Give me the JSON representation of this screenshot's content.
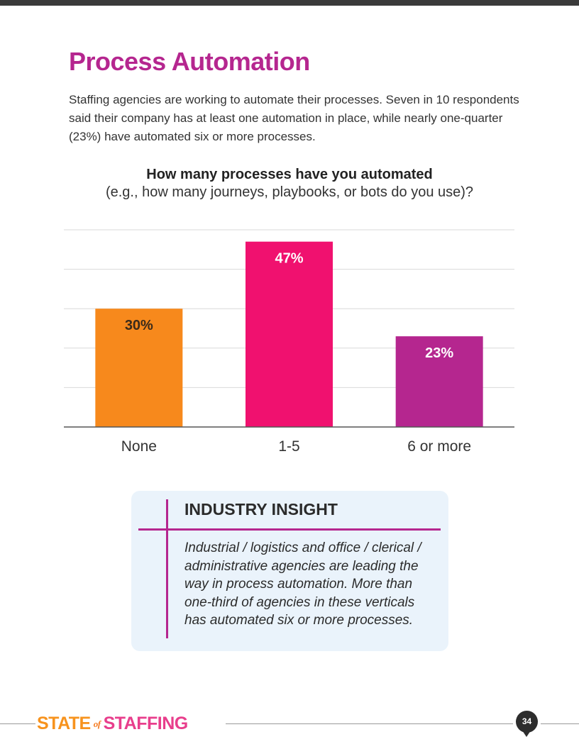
{
  "page": {
    "title": "Process Automation",
    "intro": "Staffing agencies are working to automate their processes. Seven in 10 respondents said their company has at least one automation in place, while nearly one-quarter (23%) have automated six or more processes."
  },
  "chart_data": {
    "type": "bar",
    "title": "How many processes have you automated",
    "subtitle": "(e.g., how many journeys, playbooks, or bots do you use)?",
    "categories": [
      "None",
      "1-5",
      "6 or more"
    ],
    "values": [
      30,
      47,
      23
    ],
    "labels": [
      "30%",
      "47%",
      "23%"
    ],
    "colors": [
      "#f7891c",
      "#f0116f",
      "#b5268f"
    ],
    "label_colors": [
      "#3a2a1a",
      "#ffffff",
      "#ffffff"
    ],
    "xlabel": "",
    "ylabel": "",
    "ylim": [
      0,
      50
    ],
    "grid": true
  },
  "insight": {
    "heading": "INDUSTRY INSIGHT",
    "body": "Industrial / logistics and office / clerical / administrative agencies are leading the way in process automation. More than one-third of agencies in these verticals has automated six or more processes."
  },
  "footer": {
    "brand_state": "STATE",
    "brand_of": "of",
    "brand_staffing": "STAFFING",
    "page_number": "34"
  }
}
